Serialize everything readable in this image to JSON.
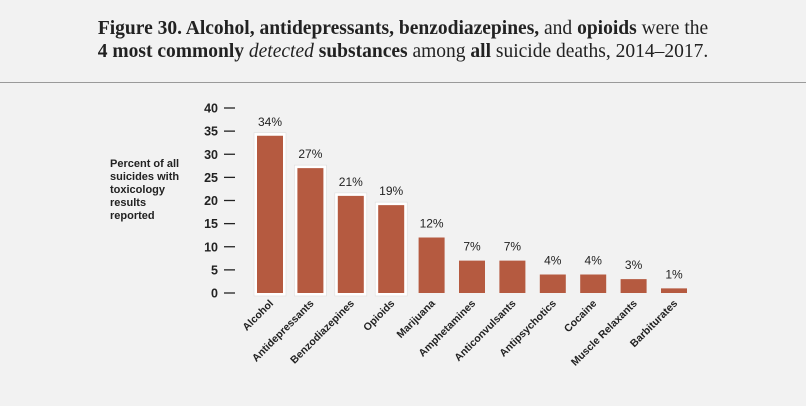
{
  "title": {
    "parts": [
      {
        "text": "Figure 30. Alcohol, antidepressants, benzodiazepines,",
        "style": "bold"
      },
      {
        "text": " and ",
        "style": "normal"
      },
      {
        "text": "opioids",
        "style": "bold"
      },
      {
        "text": " were the",
        "style": "normal"
      },
      {
        "text": "4 most commonly ",
        "style": "bold",
        "break_before": true
      },
      {
        "text": "detected",
        "style": "italic"
      },
      {
        "text": " substances",
        "style": "bold"
      },
      {
        "text": " among ",
        "style": "normal"
      },
      {
        "text": "all",
        "style": "bold"
      },
      {
        "text": " suicide deaths, 2014–2017.",
        "style": "normal"
      }
    ]
  },
  "chart_data": {
    "type": "bar",
    "title": "Figure 30. Alcohol, antidepressants, benzodiazepines, and opioids were the 4 most commonly detected substances among all suicide deaths, 2014–2017.",
    "ylabel": "Percent of all suicides with toxicology results reported",
    "xlabel": "",
    "ylim": [
      0,
      40
    ],
    "yticks": [
      0,
      5,
      10,
      15,
      20,
      25,
      30,
      35,
      40
    ],
    "categories": [
      "Alcohol",
      "Antidepressants",
      "Benzodiazepines",
      "Opioids",
      "Marijuana",
      "Amphetamines",
      "Anticonvulsants",
      "Antipsychotics",
      "Cocaine",
      "Muscle Relaxants",
      "Barbiturates"
    ],
    "values": [
      34,
      27,
      21,
      19,
      12,
      7,
      7,
      4,
      4,
      3,
      1
    ],
    "data_labels": [
      "34%",
      "27%",
      "21%",
      "19%",
      "12%",
      "7%",
      "7%",
      "4%",
      "4%",
      "3%",
      "1%"
    ],
    "highlighted": [
      "Alcohol",
      "Antidepressants",
      "Benzodiazepines",
      "Opioids"
    ],
    "bar_color": "#b55a40",
    "grid": false
  }
}
